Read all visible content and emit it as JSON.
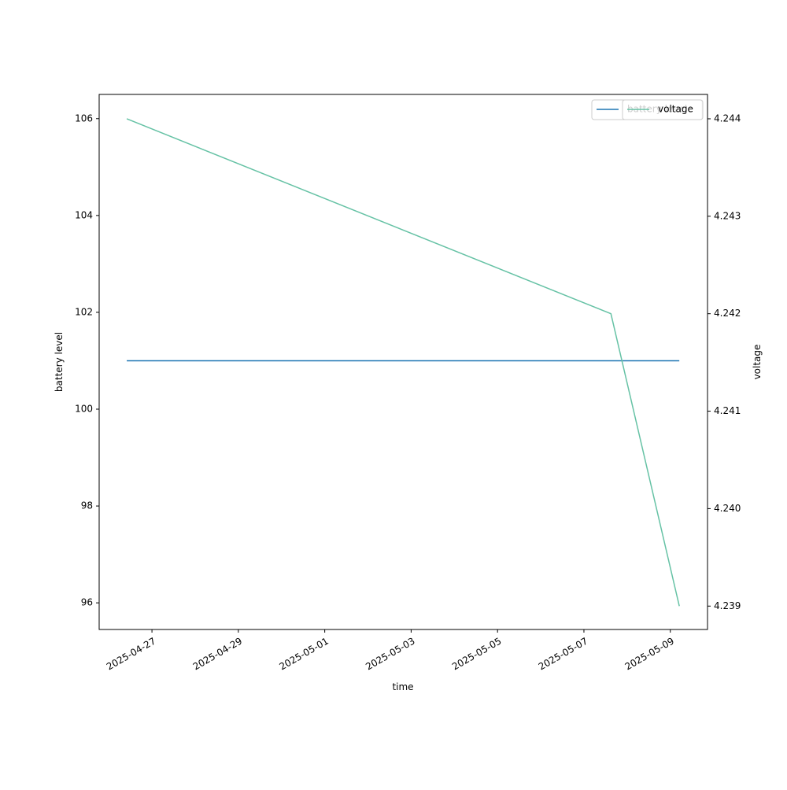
{
  "chart_data": {
    "type": "line",
    "x_label": "time",
    "y_label": "battery level",
    "y2_label": "voltage",
    "x": [
      "2025-04-26T10:00",
      "2025-05-07T15:00",
      "2025-05-09T05:00"
    ],
    "series": [
      {
        "name": "battery level",
        "color": "#1f77b4",
        "values": [
          101,
          101,
          101
        ]
      },
      {
        "name": "voltage",
        "color": "#66c2a5",
        "axis": "y2",
        "values": [
          4.244,
          4.242,
          4.239
        ]
      }
    ],
    "xlim": [
      "2025-04-25T18:40",
      "2025-05-09T20:40"
    ],
    "xticks": [
      "2025-04-27",
      "2025-04-29",
      "2025-05-01",
      "2025-05-03",
      "2025-05-05",
      "2025-05-07",
      "2025-05-09"
    ],
    "ylim": [
      95.45,
      106.5
    ],
    "yticks": [
      96,
      98,
      100,
      102,
      104,
      106
    ],
    "y2lim": [
      4.23876,
      4.24425
    ],
    "y2ticks": [
      4.239,
      {
        "value": 4.24,
        "label": "4.240"
      },
      4.241,
      4.242,
      4.243,
      4.244
    ],
    "legend": "upper right",
    "grid": false
  }
}
